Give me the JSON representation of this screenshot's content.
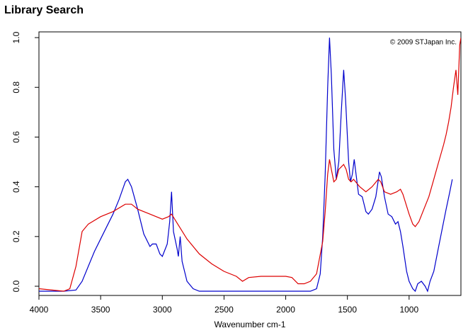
{
  "chart_data": {
    "type": "line",
    "title": "Library Search",
    "annotation": "© 2009 STJapan Inc.",
    "x_label": "Wavenumber cm-1",
    "xlim": [
      4000,
      580
    ],
    "ylim": [
      -0.037,
      1.023
    ],
    "xticks": [
      4000,
      3500,
      3000,
      2500,
      2000,
      1500,
      1000
    ],
    "yticks": [
      {
        "value": 0,
        "label": "0.0"
      },
      0.2,
      0.4,
      0.6,
      0.8,
      {
        "value": 1,
        "label": "1.0"
      }
    ],
    "series": [
      {
        "color": "#0000cc",
        "x": [
          4000,
          3800,
          3700,
          3650,
          3600,
          3550,
          3500,
          3450,
          3400,
          3350,
          3300,
          3280,
          3250,
          3200,
          3150,
          3100,
          3080,
          3050,
          3020,
          3000,
          2960,
          2940,
          2925,
          2910,
          2880,
          2870,
          2855,
          2840,
          2800,
          2750,
          2700,
          2000,
          1900,
          1800,
          1750,
          1720,
          1700,
          1680,
          1660,
          1645,
          1630,
          1610,
          1590,
          1570,
          1550,
          1530,
          1515,
          1490,
          1475,
          1460,
          1445,
          1430,
          1410,
          1380,
          1350,
          1330,
          1300,
          1270,
          1240,
          1225,
          1200,
          1170,
          1140,
          1110,
          1090,
          1070,
          1050,
          1020,
          1000,
          970,
          950,
          930,
          900,
          870,
          850,
          830,
          800,
          760,
          720,
          700,
          670,
          650
        ],
        "values": [
          -0.02,
          -0.02,
          -0.015,
          0.02,
          0.08,
          0.14,
          0.19,
          0.24,
          0.29,
          0.35,
          0.42,
          0.43,
          0.4,
          0.31,
          0.21,
          0.16,
          0.17,
          0.17,
          0.13,
          0.12,
          0.17,
          0.26,
          0.38,
          0.22,
          0.15,
          0.12,
          0.2,
          0.1,
          0.02,
          -0.01,
          -0.02,
          -0.02,
          -0.02,
          -0.02,
          -0.01,
          0.05,
          0.2,
          0.45,
          0.8,
          1.0,
          0.85,
          0.55,
          0.43,
          0.5,
          0.7,
          0.87,
          0.75,
          0.5,
          0.42,
          0.45,
          0.51,
          0.45,
          0.37,
          0.36,
          0.3,
          0.29,
          0.31,
          0.36,
          0.46,
          0.44,
          0.36,
          0.29,
          0.28,
          0.25,
          0.26,
          0.22,
          0.16,
          0.06,
          0.02,
          -0.01,
          -0.02,
          0.01,
          0.02,
          0.0,
          -0.02,
          0.02,
          0.06,
          0.16,
          0.26,
          0.31,
          0.38,
          0.43
        ]
      },
      {
        "color": "#dd0000",
        "x": [
          4000,
          3800,
          3750,
          3700,
          3650,
          3600,
          3500,
          3400,
          3300,
          3250,
          3200,
          3100,
          3000,
          2950,
          2925,
          2900,
          2850,
          2800,
          2700,
          2600,
          2500,
          2400,
          2350,
          2300,
          2200,
          2100,
          2000,
          1950,
          1900,
          1850,
          1800,
          1750,
          1700,
          1680,
          1660,
          1645,
          1630,
          1610,
          1590,
          1570,
          1550,
          1530,
          1510,
          1490,
          1470,
          1450,
          1400,
          1350,
          1300,
          1250,
          1230,
          1200,
          1150,
          1100,
          1070,
          1050,
          1000,
          970,
          950,
          920,
          880,
          840,
          800,
          760,
          720,
          700,
          680,
          660,
          640,
          620,
          605,
          590,
          580
        ],
        "values": [
          -0.01,
          -0.02,
          -0.01,
          0.08,
          0.22,
          0.25,
          0.28,
          0.3,
          0.33,
          0.33,
          0.31,
          0.29,
          0.27,
          0.28,
          0.29,
          0.27,
          0.23,
          0.19,
          0.13,
          0.09,
          0.06,
          0.04,
          0.02,
          0.035,
          0.04,
          0.04,
          0.04,
          0.035,
          0.01,
          0.01,
          0.02,
          0.05,
          0.18,
          0.3,
          0.45,
          0.51,
          0.47,
          0.42,
          0.43,
          0.47,
          0.48,
          0.49,
          0.47,
          0.43,
          0.42,
          0.43,
          0.4,
          0.38,
          0.4,
          0.43,
          0.42,
          0.38,
          0.37,
          0.38,
          0.39,
          0.37,
          0.29,
          0.25,
          0.24,
          0.26,
          0.31,
          0.36,
          0.43,
          0.5,
          0.57,
          0.61,
          0.66,
          0.72,
          0.8,
          0.87,
          0.77,
          0.97,
          1.0
        ]
      }
    ]
  }
}
